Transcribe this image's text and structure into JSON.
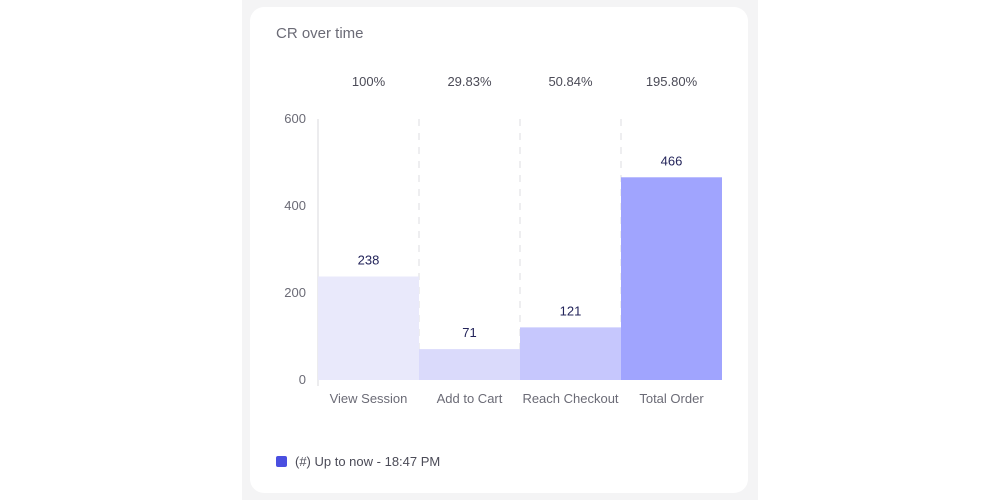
{
  "card": {
    "title": "CR over time"
  },
  "legend": {
    "label": "(#) Up to now - 18:47 PM",
    "color": "#4a4fe0"
  },
  "chart_data": {
    "type": "bar",
    "title": "CR over time",
    "categories": [
      "View Session",
      "Add to Cart",
      "Reach Checkout",
      "Total Order"
    ],
    "values": [
      238,
      71,
      121,
      466
    ],
    "percent_labels": [
      "100%",
      "29.83%",
      "50.84%",
      "195.80%"
    ],
    "bar_colors": [
      "#e9e9fb",
      "#dadafb",
      "#c6c7fd",
      "#a0a4fe"
    ],
    "yticks": [
      0,
      200,
      400,
      600
    ],
    "ylim": [
      0,
      600
    ],
    "xlabel": "",
    "ylabel": "",
    "grid": "dashed vertical separators",
    "legend_placement": "bottom-left"
  }
}
